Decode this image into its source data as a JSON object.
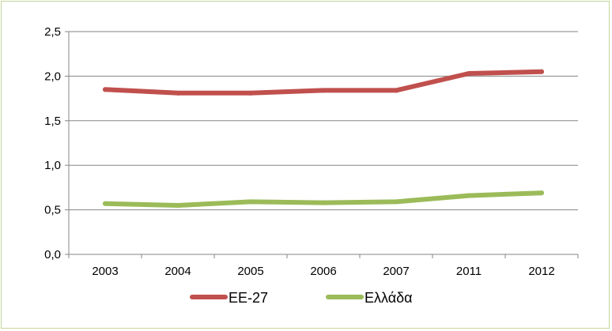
{
  "chart_data": {
    "type": "line",
    "categories": [
      "2003",
      "2004",
      "2005",
      "2006",
      "2007",
      "2011",
      "2012"
    ],
    "series": [
      {
        "name": "ΕΕ-27",
        "color": "#c0504d",
        "values": [
          1.85,
          1.81,
          1.81,
          1.84,
          1.84,
          2.03,
          2.05
        ]
      },
      {
        "name": "Ελλάδα",
        "color": "#9bbb59",
        "values": [
          0.57,
          0.55,
          0.59,
          0.58,
          0.59,
          0.66,
          0.69
        ]
      }
    ],
    "ylim": [
      0,
      2.5
    ],
    "yticks": [
      "0,0",
      "0,5",
      "1,0",
      "1,5",
      "2,0",
      "2,5"
    ],
    "grid": true,
    "legend_position": "bottom",
    "title": "",
    "xlabel": "",
    "ylabel": ""
  }
}
